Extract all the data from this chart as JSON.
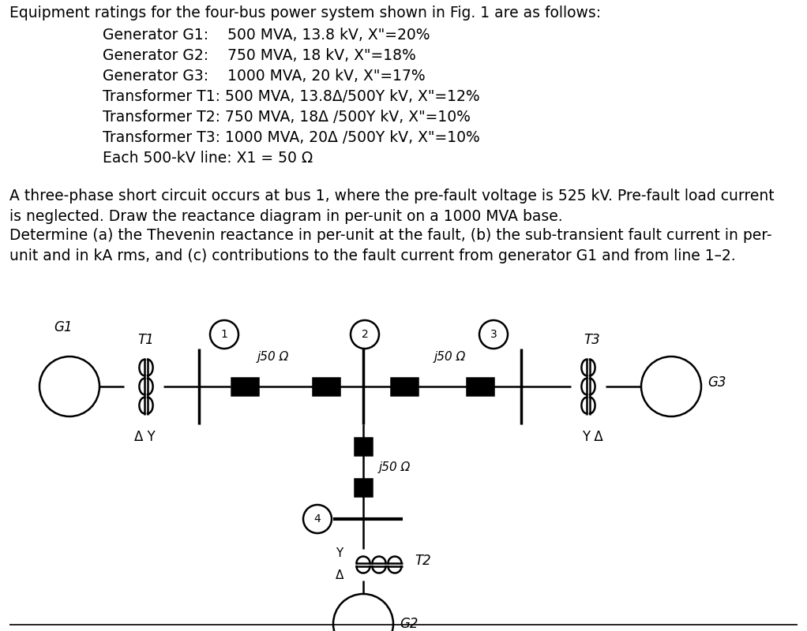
{
  "title_text": "Equipment ratings for the four-bus power system shown in Fig. 1 are as follows:",
  "equipment_lines": [
    "Generator G1:    500 MVA, 13.8 kV, X\"=20%",
    "Generator G2:    750 MVA, 18 kV, X\"=18%",
    "Generator G3:    1000 MVA, 20 kV, X\"=17%",
    "Transformer T1: 500 MVA, 13.8Δ/500Y kV, X\"=12%",
    "Transformer T2: 750 MVA, 18Δ /500Y kV, X\"=10%",
    "Transformer T3: 1000 MVA, 20Δ /500Y kV, X\"=10%",
    "Each 500-kV line: X1 = 50 Ω"
  ],
  "p1_line1": "A three-phase short circuit occurs at bus 1, where the pre-fault voltage is 525 kV. Pre-fault load current",
  "p1_line2": "is neglected. Draw the reactance diagram in per-unit on a 1000 MVA base.",
  "p2_line1": "Determine (a) the Thevenin reactance in per-unit at the fault, (b) the sub-transient fault current in per-",
  "p2_line2": "unit and in kA rms, and (c) contributions to the fault current from generator G1 and from line 1–2.",
  "bg_color": "#ffffff",
  "text_color": "#000000",
  "line_color": "#000000"
}
